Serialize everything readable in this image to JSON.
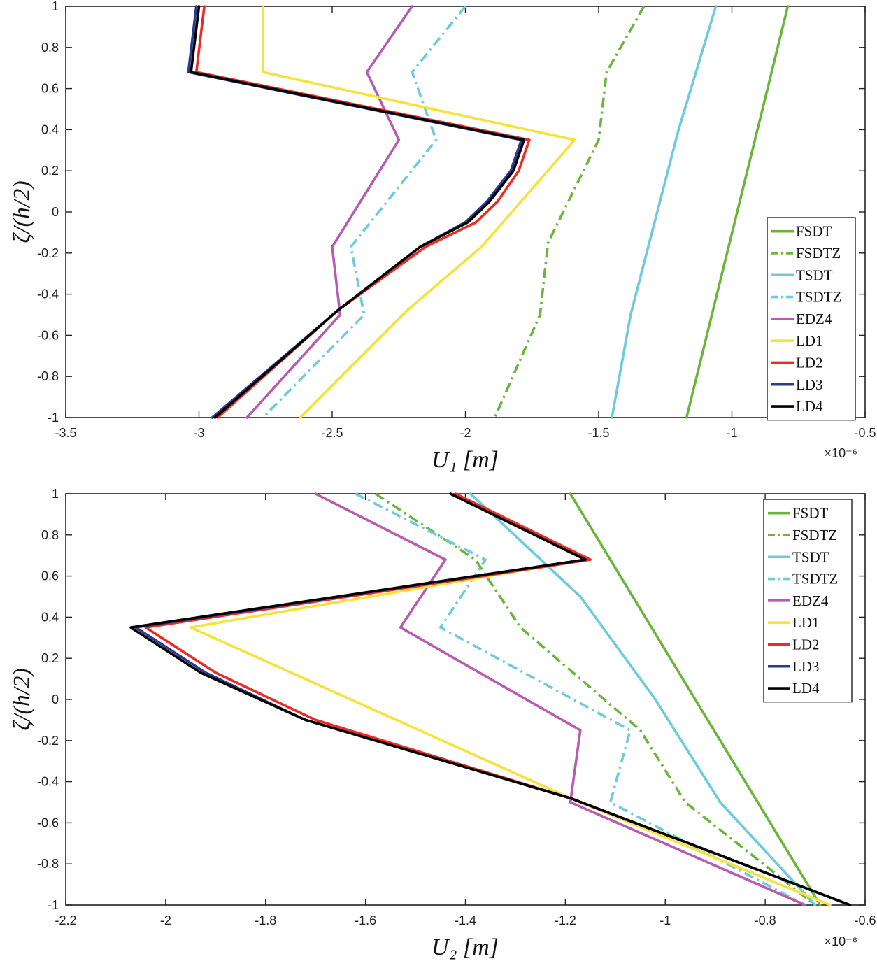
{
  "chart_data": [
    {
      "type": "line",
      "xlabel": "U₁  [m]",
      "ylabel": "ζ/(h/2)",
      "x_scale_label": "×10⁻⁶",
      "xlim": [
        -3.5,
        -0.5
      ],
      "ylim": [
        -1,
        1
      ],
      "xticks": [
        -3.5,
        -3,
        -2.5,
        -2,
        -1.5,
        -1,
        -0.5
      ],
      "yticks": [
        -1,
        -0.8,
        -0.6,
        -0.4,
        -0.2,
        0,
        0.2,
        0.4,
        0.6,
        0.8,
        1
      ],
      "xtick_labels": [
        "-3.5",
        "-3",
        "-2.5",
        "-2",
        "-1.5",
        "-1",
        "-0.5"
      ],
      "ytick_labels": [
        "-1",
        "-0.8",
        "-0.6",
        "-0.4",
        "-0.2",
        "0",
        "0.2",
        "0.4",
        "0.6",
        "0.8",
        "1"
      ],
      "legend_position": "bottom-right",
      "series": [
        {
          "name": "FSDT",
          "color": "#6ab63a",
          "dash": "solid",
          "points": [
            [
              -0.79,
              1
            ],
            [
              -1.17,
              -1
            ]
          ]
        },
        {
          "name": "FSDTZ",
          "color": "#6ab63a",
          "dash": "dashdot",
          "points": [
            [
              -1.33,
              1
            ],
            [
              -1.47,
              0.68
            ],
            [
              -1.5,
              0.35
            ],
            [
              -1.69,
              -0.15
            ],
            [
              -1.72,
              -0.5
            ],
            [
              -1.89,
              -1
            ]
          ]
        },
        {
          "name": "TSDT",
          "color": "#6ecbdc",
          "dash": "solid",
          "points": [
            [
              -1.06,
              1
            ],
            [
              -1.2,
              0.4
            ],
            [
              -1.28,
              0
            ],
            [
              -1.38,
              -0.5
            ],
            [
              -1.45,
              -1
            ]
          ]
        },
        {
          "name": "TSDTZ",
          "color": "#6ecbdc",
          "dash": "dashdot",
          "points": [
            [
              -2.0,
              1
            ],
            [
              -2.2,
              0.68
            ],
            [
              -2.11,
              0.35
            ],
            [
              -2.43,
              -0.17
            ],
            [
              -2.38,
              -0.5
            ],
            [
              -2.76,
              -1
            ]
          ]
        },
        {
          "name": "EDZ4",
          "color": "#b85bb2",
          "dash": "solid",
          "points": [
            [
              -2.2,
              1
            ],
            [
              -2.37,
              0.68
            ],
            [
              -2.25,
              0.35
            ],
            [
              -2.5,
              -0.17
            ],
            [
              -2.47,
              -0.5
            ],
            [
              -2.82,
              -1
            ]
          ]
        },
        {
          "name": "LD1",
          "color": "#f5e23a",
          "dash": "solid",
          "points": [
            [
              -2.76,
              1
            ],
            [
              -2.76,
              0.68
            ],
            [
              -1.59,
              0.35
            ],
            [
              -1.94,
              -0.17
            ],
            [
              -2.22,
              -0.48
            ],
            [
              -2.62,
              -1
            ]
          ]
        },
        {
          "name": "LD2",
          "color": "#ee2a24",
          "dash": "solid",
          "points": [
            [
              -2.98,
              1
            ],
            [
              -3.01,
              0.68
            ],
            [
              -1.76,
              0.35
            ],
            [
              -1.8,
              0.2
            ],
            [
              -1.88,
              0.05
            ],
            [
              -1.96,
              -0.05
            ],
            [
              -2.15,
              -0.17
            ],
            [
              -2.48,
              -0.48
            ],
            [
              -2.93,
              -1
            ]
          ]
        },
        {
          "name": "LD3",
          "color": "#2a3b8f",
          "dash": "solid",
          "points": [
            [
              -3.01,
              1
            ],
            [
              -3.04,
              0.68
            ],
            [
              -1.79,
              0.35
            ],
            [
              -1.83,
              0.2
            ],
            [
              -1.92,
              0.05
            ],
            [
              -2.0,
              -0.05
            ],
            [
              -2.17,
              -0.17
            ],
            [
              -2.48,
              -0.48
            ],
            [
              -2.95,
              -1
            ]
          ]
        },
        {
          "name": "LD4",
          "color": "#000000",
          "dash": "solid",
          "points": [
            [
              -3.0,
              1
            ],
            [
              -3.03,
              0.68
            ],
            [
              -1.78,
              0.35
            ],
            [
              -1.82,
              0.2
            ],
            [
              -1.91,
              0.05
            ],
            [
              -1.99,
              -0.05
            ],
            [
              -2.17,
              -0.17
            ],
            [
              -2.48,
              -0.48
            ],
            [
              -2.94,
              -1
            ]
          ]
        }
      ]
    },
    {
      "type": "line",
      "xlabel": "U₂  [m]",
      "ylabel": "ζ/(h/2)",
      "x_scale_label": "×10⁻⁶",
      "xlim": [
        -2.2,
        -0.6
      ],
      "ylim": [
        -1,
        1
      ],
      "xticks": [
        -2.2,
        -2,
        -1.8,
        -1.6,
        -1.4,
        -1.2,
        -1,
        -0.8,
        -0.6
      ],
      "yticks": [
        -1,
        -0.8,
        -0.6,
        -0.4,
        -0.2,
        0,
        0.2,
        0.4,
        0.6,
        0.8,
        1
      ],
      "xtick_labels": [
        "-2.2",
        "-2",
        "-1.8",
        "-1.6",
        "-1.4",
        "-1.2",
        "-1",
        "-0.8",
        "-0.6"
      ],
      "ytick_labels": [
        "-1",
        "-0.8",
        "-0.6",
        "-0.4",
        "-0.2",
        "0",
        "0.2",
        "0.4",
        "0.6",
        "0.8",
        "1"
      ],
      "legend_position": "top-right",
      "series": [
        {
          "name": "FSDT",
          "color": "#6ab63a",
          "dash": "solid",
          "points": [
            [
              -1.19,
              1
            ],
            [
              -0.69,
              -1
            ]
          ]
        },
        {
          "name": "FSDTZ",
          "color": "#6ab63a",
          "dash": "dashdot",
          "points": [
            [
              -1.58,
              1
            ],
            [
              -1.38,
              0.68
            ],
            [
              -1.29,
              0.35
            ],
            [
              -1.05,
              -0.15
            ],
            [
              -0.96,
              -0.5
            ],
            [
              -0.7,
              -1
            ]
          ]
        },
        {
          "name": "TSDT",
          "color": "#6ecbdc",
          "dash": "solid",
          "points": [
            [
              -1.39,
              1
            ],
            [
              -1.17,
              0.5
            ],
            [
              -1.02,
              0
            ],
            [
              -0.89,
              -0.5
            ],
            [
              -0.7,
              -1
            ]
          ]
        },
        {
          "name": "TSDTZ",
          "color": "#6ecbdc",
          "dash": "dashdot",
          "points": [
            [
              -1.62,
              1
            ],
            [
              -1.36,
              0.68
            ],
            [
              -1.45,
              0.35
            ],
            [
              -1.07,
              -0.15
            ],
            [
              -1.11,
              -0.5
            ],
            [
              -0.72,
              -1
            ]
          ]
        },
        {
          "name": "EDZ4",
          "color": "#b85bb2",
          "dash": "solid",
          "points": [
            [
              -1.7,
              1
            ],
            [
              -1.44,
              0.68
            ],
            [
              -1.53,
              0.35
            ],
            [
              -1.17,
              -0.15
            ],
            [
              -1.19,
              -0.5
            ],
            [
              -0.72,
              -1
            ]
          ]
        },
        {
          "name": "LD1",
          "color": "#f5e23a",
          "dash": "solid",
          "points": [
            [
              -1.43,
              1
            ],
            [
              -1.16,
              0.68
            ],
            [
              -1.95,
              0.35
            ],
            [
              -1.19,
              -0.48
            ],
            [
              -0.67,
              -1
            ]
          ]
        },
        {
          "name": "LD2",
          "color": "#ee2a24",
          "dash": "solid",
          "points": [
            [
              -1.42,
              1
            ],
            [
              -1.15,
              0.68
            ],
            [
              -2.04,
              0.35
            ],
            [
              -1.9,
              0.13
            ],
            [
              -1.7,
              -0.1
            ],
            [
              -1.19,
              -0.48
            ],
            [
              -0.63,
              -1
            ]
          ]
        },
        {
          "name": "LD3",
          "color": "#2a3b8f",
          "dash": "solid",
          "points": [
            [
              -1.43,
              1
            ],
            [
              -1.16,
              0.68
            ],
            [
              -2.06,
              0.35
            ],
            [
              -1.92,
              0.13
            ],
            [
              -1.72,
              -0.1
            ],
            [
              -1.19,
              -0.48
            ],
            [
              -0.63,
              -1
            ]
          ]
        },
        {
          "name": "LD4",
          "color": "#000000",
          "dash": "solid",
          "points": [
            [
              -1.43,
              1
            ],
            [
              -1.16,
              0.68
            ],
            [
              -2.07,
              0.35
            ],
            [
              -1.93,
              0.13
            ],
            [
              -1.72,
              -0.1
            ],
            [
              -1.19,
              -0.48
            ],
            [
              -0.63,
              -1
            ]
          ]
        }
      ]
    }
  ]
}
